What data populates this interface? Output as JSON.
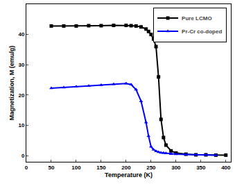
{
  "chart_data": {
    "type": "line",
    "x_label": "Temperature (K)",
    "y_label": "Magnetization, M (emu/g)",
    "x": [
      50,
      75,
      100,
      125,
      150,
      175,
      200,
      210,
      220,
      230,
      240,
      245,
      250,
      255,
      260,
      265,
      270,
      275,
      280,
      290,
      300,
      320,
      340,
      360,
      380,
      400
    ],
    "series": [
      {
        "name": "Pure LCMO",
        "color": "#000000",
        "marker": "square",
        "values": [
          42.8,
          42.8,
          42.8,
          42.9,
          42.9,
          43,
          43,
          42.9,
          42.8,
          42.5,
          41.8,
          41,
          40,
          38.5,
          36,
          26,
          12,
          6,
          3.5,
          1.6,
          0.9,
          0.5,
          0.3,
          0.3,
          0.2,
          0.2
        ]
      },
      {
        "name": "Pr-Cr co-doped",
        "color": "#0000ff",
        "marker": "triangle-up",
        "values": [
          22.3,
          22.5,
          22.8,
          23,
          23.3,
          23.6,
          23.8,
          23.5,
          21.8,
          18,
          11,
          6.5,
          3,
          2,
          1.5,
          1.2,
          1,
          0.9,
          0.8,
          0.6,
          0.5,
          0.4,
          0.3,
          0.3,
          0.2,
          null
        ]
      }
    ],
    "xlim": [
      0,
      410
    ],
    "xticks": [
      0,
      50,
      100,
      150,
      200,
      250,
      300,
      350,
      400
    ],
    "ylim": [
      -2,
      50
    ],
    "yticks": [
      0,
      10,
      20,
      30,
      40
    ],
    "grid": false,
    "legend": "top right"
  }
}
